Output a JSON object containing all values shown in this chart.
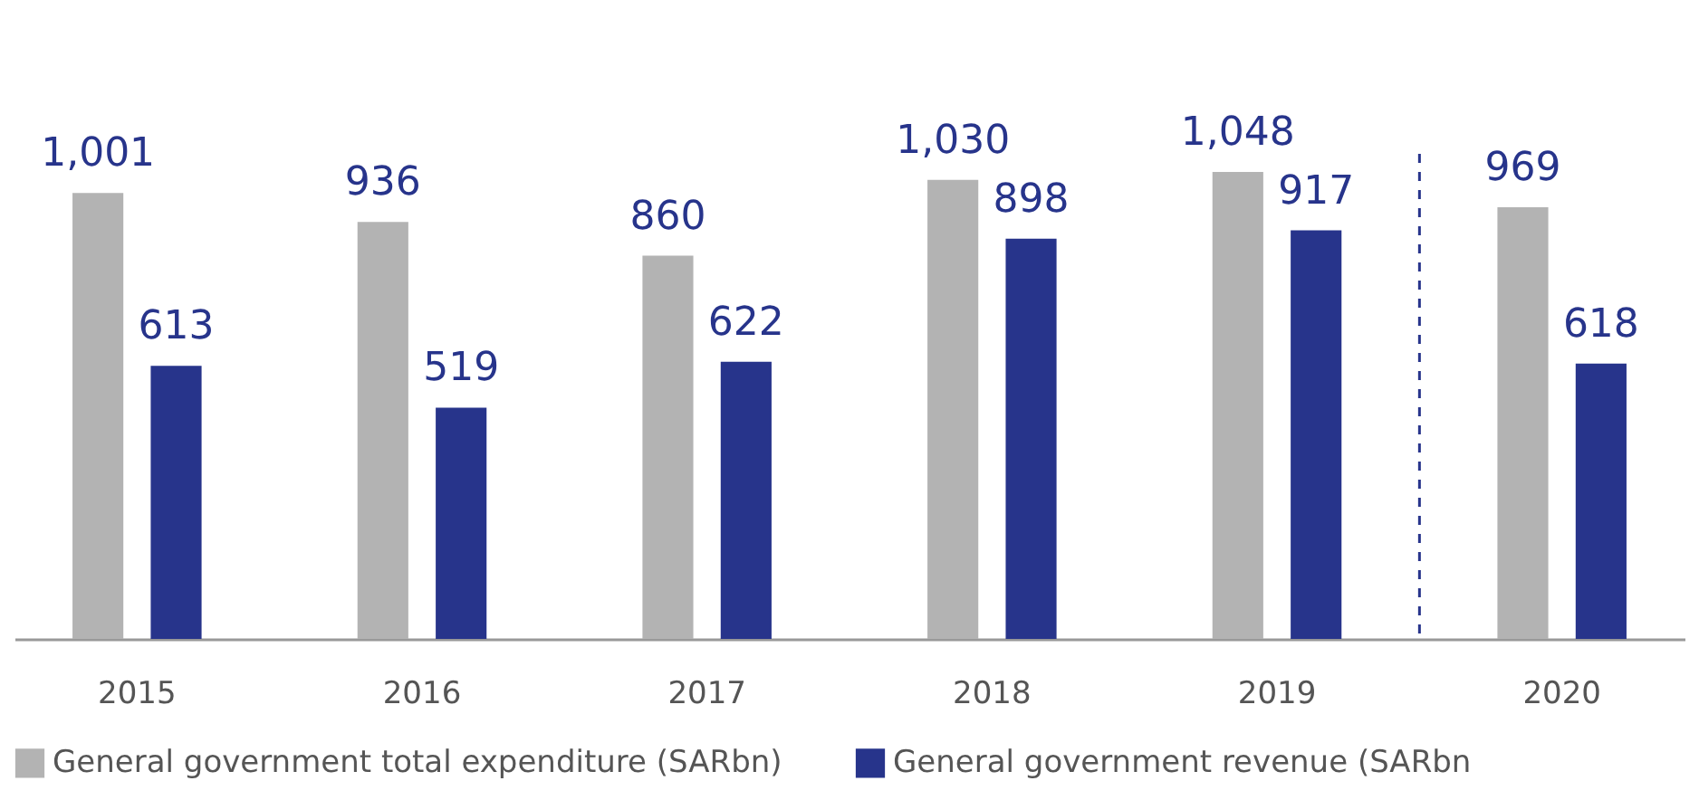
{
  "chart_data": {
    "type": "bar",
    "categories": [
      "2015",
      "2016",
      "2017",
      "2018",
      "2019",
      "2020"
    ],
    "series": [
      {
        "name": "General government total expenditure (SARbn)",
        "color": "#b3b3b3",
        "values": [
          1001,
          936,
          860,
          1030,
          1048,
          969
        ],
        "value_labels": [
          "1,001",
          "936",
          "860",
          "1,030",
          "1,048",
          "969"
        ]
      },
      {
        "name": "General government revenue (SARbn",
        "color": "#27348b",
        "values": [
          613,
          519,
          622,
          898,
          917,
          618
        ],
        "value_labels": [
          "613",
          "519",
          "622",
          "898",
          "917",
          "618"
        ]
      }
    ],
    "legend": "bottom",
    "ref_lines": [
      {
        "axis": "x",
        "value": "2020",
        "line_style": "dashed",
        "color": "#27348b"
      }
    ]
  }
}
